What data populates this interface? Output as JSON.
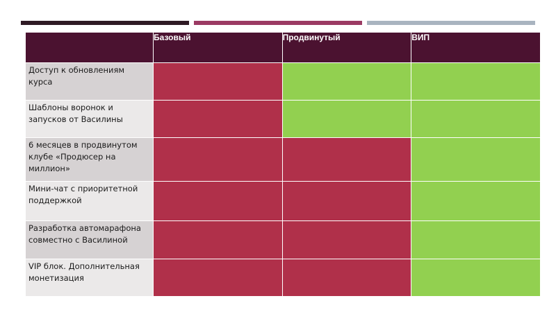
{
  "columns": [
    "Базовый",
    "Продвинутый",
    "ВИП"
  ],
  "rows": [
    {
      "label": "Доступ к обновлениям курса",
      "cells": [
        "no",
        "yes",
        "yes"
      ]
    },
    {
      "label": "Шаблоны воронок и запусков от Василины",
      "cells": [
        "no",
        "yes",
        "yes"
      ]
    },
    {
      "label": "6 месяцев в продвинутом клубе «Продюсер на миллион»",
      "cells": [
        "no",
        "no",
        "yes"
      ]
    },
    {
      "label": "Мини-чат с приоритетной поддержкой",
      "cells": [
        "no",
        "no",
        "yes"
      ]
    },
    {
      "label": "Разработка автомарафона совместно с Василиной",
      "cells": [
        "no",
        "no",
        "yes"
      ]
    },
    {
      "label": "VIP блок. Дополнительная монетизация",
      "cells": [
        "no",
        "no",
        "yes"
      ]
    }
  ],
  "colors": {
    "header": "#4b1230",
    "no": "#b0304a",
    "yes": "#92d050",
    "label_dark": "#d6d2d3",
    "label_light": "#ebe9e9"
  }
}
